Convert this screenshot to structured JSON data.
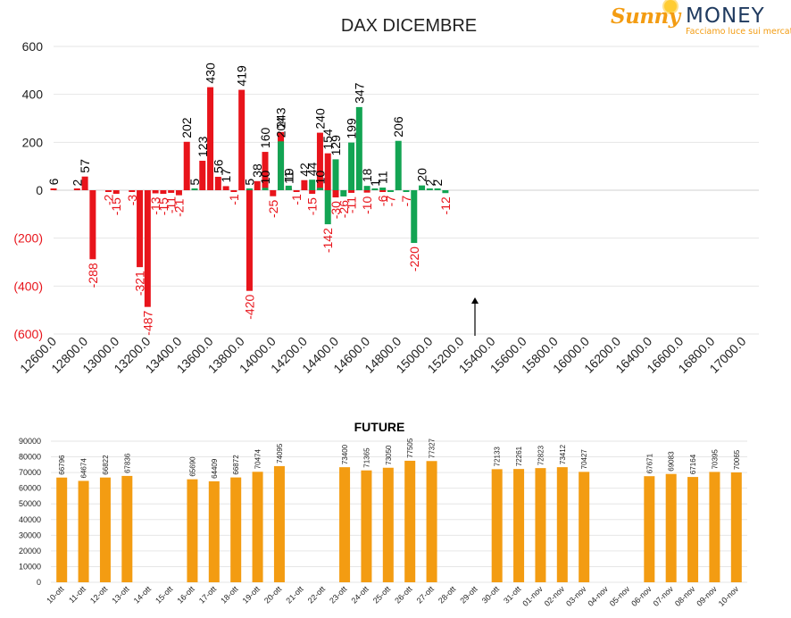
{
  "brand": {
    "name_a": "Sunny",
    "name_b": "MONEY",
    "tagline": "Facciamo luce sui mercati"
  },
  "chart_data": [
    {
      "type": "bar",
      "title": "DAX DICEMBRE",
      "xlabel": "",
      "ylabel": "",
      "ylim": [
        -600,
        600
      ],
      "yticks": [
        600,
        400,
        200,
        0,
        -200,
        -400,
        -600
      ],
      "ytick_labels": [
        "600",
        "400",
        "200",
        "0",
        "(200)",
        "(400)",
        "(600)"
      ],
      "xlim": [
        12600,
        17100
      ],
      "xticks": [
        12600,
        12800,
        13000,
        13200,
        13400,
        13600,
        13800,
        14000,
        14200,
        14400,
        14600,
        14800,
        15000,
        15200,
        15400,
        15600,
        15800,
        16000,
        16200,
        16400,
        16600,
        16800,
        17000
      ],
      "xtick_labels": [
        "12600.0",
        "12800.0",
        "13000.0",
        "13200.0",
        "13400.0",
        "13600.0",
        "13800.0",
        "14000.0",
        "14200.0",
        "14400.0",
        "14600.0",
        "14800.0",
        "15000.0",
        "15200.0",
        "15400.0",
        "15600.0",
        "15800.0",
        "16000.0",
        "16200.0",
        "16400.0",
        "16600.0",
        "16800.0",
        "17000.0"
      ],
      "colors": {
        "red": "#e8141b",
        "green": "#13a453",
        "negative_label": "#e8141b",
        "positive_label": "#000000"
      },
      "series": [
        {
          "color": "red",
          "points": [
            {
              "x": 12600,
              "y": 6
            },
            {
              "x": 12750,
              "y": 2
            },
            {
              "x": 12800,
              "y": 57
            },
            {
              "x": 12850,
              "y": -288
            },
            {
              "x": 12950,
              "y": -2
            },
            {
              "x": 13000,
              "y": -15
            },
            {
              "x": 13100,
              "y": -3
            },
            {
              "x": 13150,
              "y": -321
            },
            {
              "x": 13200,
              "y": -487
            },
            {
              "x": 13250,
              "y": -13
            },
            {
              "x": 13300,
              "y": -15
            },
            {
              "x": 13350,
              "y": -11
            },
            {
              "x": 13400,
              "y": -21
            },
            {
              "x": 13450,
              "y": 202
            },
            {
              "x": 13550,
              "y": 123
            },
            {
              "x": 13600,
              "y": 430
            },
            {
              "x": 13650,
              "y": 56
            },
            {
              "x": 13700,
              "y": 17
            },
            {
              "x": 13750,
              "y": -1
            },
            {
              "x": 13800,
              "y": 419
            },
            {
              "x": 13850,
              "y": -420
            },
            {
              "x": 13900,
              "y": 38
            },
            {
              "x": 13950,
              "y": 160
            },
            {
              "x": 14000,
              "y": -25
            },
            {
              "x": 14050,
              "y": 243
            },
            {
              "x": 14100,
              "y": 11
            },
            {
              "x": 14150,
              "y": -1
            },
            {
              "x": 14200,
              "y": 42
            },
            {
              "x": 14250,
              "y": -15
            },
            {
              "x": 14300,
              "y": 240
            },
            {
              "x": 14350,
              "y": 154
            },
            {
              "x": 14400,
              "y": -30
            },
            {
              "x": 14500,
              "y": -11
            },
            {
              "x": 14600,
              "y": -10
            },
            {
              "x": 14700,
              "y": -6
            }
          ]
        },
        {
          "color": "green",
          "points": [
            {
              "x": 13500,
              "y": 5
            },
            {
              "x": 13850,
              "y": 5
            },
            {
              "x": 13950,
              "y": 10
            },
            {
              "x": 14050,
              "y": 204
            },
            {
              "x": 14100,
              "y": 19
            },
            {
              "x": 14250,
              "y": 44
            },
            {
              "x": 14300,
              "y": 10
            },
            {
              "x": 14350,
              "y": -142
            },
            {
              "x": 14400,
              "y": 129
            },
            {
              "x": 14450,
              "y": -26
            },
            {
              "x": 14500,
              "y": 199
            },
            {
              "x": 14550,
              "y": 347
            },
            {
              "x": 14600,
              "y": 18
            },
            {
              "x": 14650,
              "y": 1
            },
            {
              "x": 14700,
              "y": 11
            },
            {
              "x": 14750,
              "y": -7
            },
            {
              "x": 14800,
              "y": 206
            },
            {
              "x": 14850,
              "y": -7
            },
            {
              "x": 14900,
              "y": -220
            },
            {
              "x": 14950,
              "y": 20
            },
            {
              "x": 15000,
              "y": 2
            },
            {
              "x": 15050,
              "y": 2
            },
            {
              "x": 15100,
              "y": -12
            }
          ]
        }
      ]
    },
    {
      "type": "bar",
      "title": "FUTURE",
      "xlabel": "",
      "ylabel": "",
      "ylim": [
        0,
        90000
      ],
      "yticks": [
        0,
        10000,
        20000,
        30000,
        40000,
        50000,
        60000,
        70000,
        80000,
        90000
      ],
      "ytick_labels": [
        "0",
        "10000",
        "20000",
        "30000",
        "40000",
        "50000",
        "60000",
        "70000",
        "80000",
        "90000"
      ],
      "bar_color": "#f39c12",
      "categories": [
        "10-ott",
        "11-ott",
        "12-ott",
        "13-ott",
        "14-ott",
        "15-ott",
        "16-ott",
        "17-ott",
        "18-ott",
        "19-ott",
        "20-ott",
        "21-ott",
        "22-ott",
        "23-ott",
        "24-ott",
        "25-ott",
        "26-ott",
        "27-ott",
        "28-ott",
        "29-ott",
        "30-ott",
        "31-ott",
        "01-nov",
        "02-nov",
        "03-nov",
        "04-nov",
        "05-nov",
        "06-nov",
        "07-nov",
        "08-nov",
        "09-nov",
        "10-nov"
      ],
      "values": [
        66796,
        64674,
        66822,
        67836,
        null,
        null,
        65690,
        64409,
        66872,
        70474,
        74095,
        null,
        null,
        73400,
        71365,
        73050,
        77505,
        77327,
        null,
        null,
        72133,
        72261,
        72823,
        73412,
        70427,
        null,
        null,
        67671,
        69083,
        67164,
        70395,
        70065
      ]
    }
  ]
}
